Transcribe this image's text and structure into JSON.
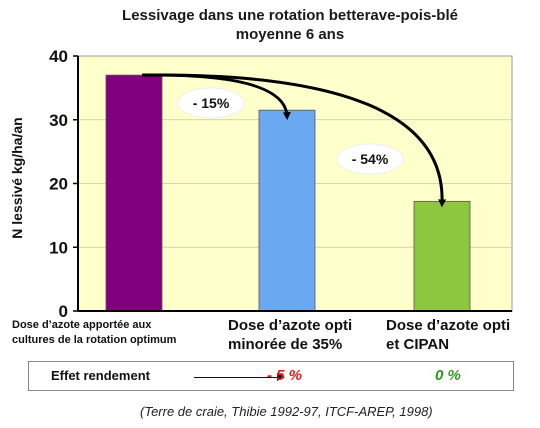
{
  "chart_data": {
    "type": "bar",
    "title_lines": [
      "Lessivage dans une rotation betterave-pois-blé",
      "moyenne 6 ans"
    ],
    "ylabel": "N lessivé kg/ha/an",
    "ylim": [
      0,
      40
    ],
    "yticks": [
      "0",
      "10",
      "20",
      "30",
      "40"
    ],
    "categories": [
      [
        "Dose d’azote apportée aux",
        "cultures de la rotation optimum"
      ],
      [
        "Dose d’azote opti",
        "minorée de 35%"
      ],
      [
        "Dose d’azote opti",
        "et CIPAN"
      ]
    ],
    "values": [
      37,
      31.5,
      17.2
    ],
    "colors": [
      "#800080",
      "#6aa8f2",
      "#8dc63f"
    ],
    "plot_background": "#ffffcc",
    "annotations": [
      {
        "text": "- 15%",
        "from": 0,
        "to": 1
      },
      {
        "text": "- 54%",
        "from": 0,
        "to": 2
      }
    ]
  },
  "effect": {
    "label": "Effet  rendement",
    "values": [
      "- 5 %",
      "0 %"
    ],
    "value_colors": [
      "#e31b1b",
      "#2a9a1f"
    ]
  },
  "source": "(Terre de craie, Thibie 1992-97, ITCF-AREP, 1998)"
}
